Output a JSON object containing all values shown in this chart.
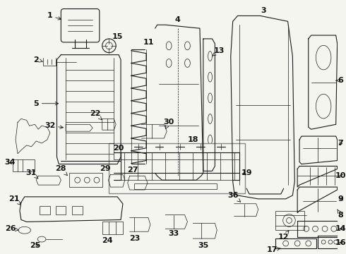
{
  "bg_color": "#f5f5f0",
  "line_color": "#1a1a1a",
  "text_color": "#111111",
  "label_fontsize": 8,
  "fig_width": 4.9,
  "fig_height": 3.6,
  "dpi": 100
}
